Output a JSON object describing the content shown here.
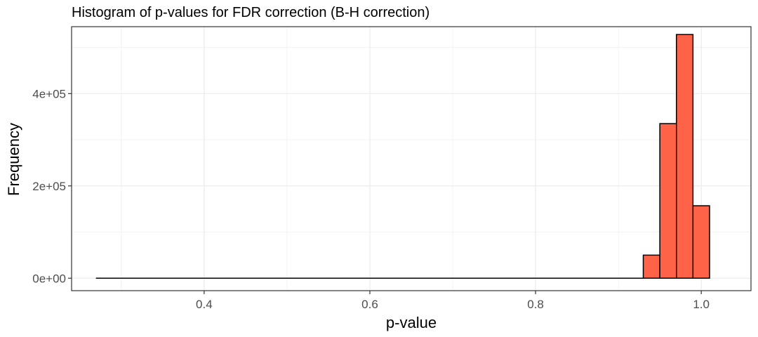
{
  "chart_data": {
    "type": "bar",
    "title": "Histogram of p-values for FDR correction (B-H correction)",
    "xlabel": "p-value",
    "ylabel": "Frequency",
    "xlim": [
      0.24,
      1.06
    ],
    "ylim": [
      -27000,
      545000
    ],
    "x_ticks": [
      0.4,
      0.6,
      0.8,
      1.0
    ],
    "x_tick_labels": [
      "0.4",
      "0.6",
      "0.8",
      "1.0"
    ],
    "y_ticks": [
      0,
      200000,
      400000
    ],
    "y_tick_labels": [
      "0e+00",
      "2e+05",
      "4e+05"
    ],
    "grid": true,
    "bin_width": 0.02,
    "bin_start": 0.27,
    "counts": [
      0,
      0,
      0,
      0,
      0,
      0,
      0,
      0,
      0,
      0,
      0,
      0,
      0,
      0,
      0,
      0,
      0,
      0,
      0,
      0,
      0,
      0,
      0,
      0,
      0,
      0,
      0,
      0,
      0,
      0,
      0,
      0,
      0,
      50000,
      335000,
      528000,
      157000
    ],
    "colors": {
      "bar_fill": "#FF6347",
      "bar_stroke": "#000000",
      "grid": "#ebebeb",
      "panel_border": "#333333",
      "tick_text": "#4d4d4d"
    }
  }
}
